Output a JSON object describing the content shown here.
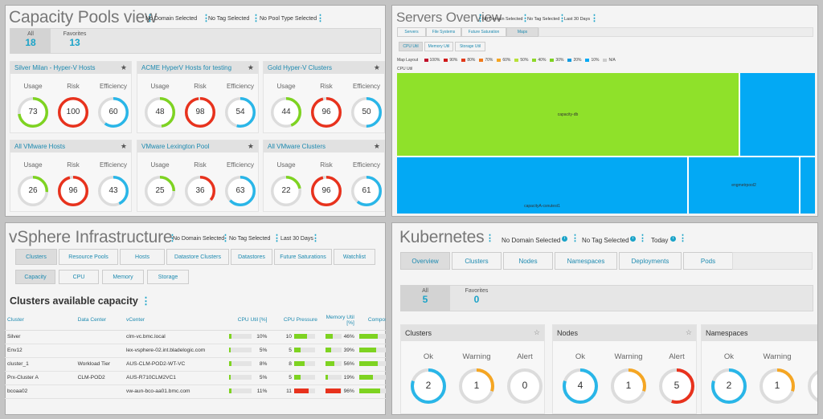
{
  "capacity": {
    "title": "Capacity Pools view",
    "filters": [
      "No Domain Selected",
      "No Tag Selected",
      "No Pool Type Selected"
    ],
    "tabs": [
      {
        "label": "All",
        "count": "18"
      },
      {
        "label": "Favorites",
        "count": "13"
      }
    ],
    "metric_labels": [
      "Usage",
      "Risk",
      "Efficiency"
    ],
    "pools": [
      {
        "name": "Silver Milan - Hyper-V Hosts",
        "values": [
          73,
          100,
          60
        ]
      },
      {
        "name": "ACME HyperV Hosts for testing",
        "values": [
          48,
          98,
          54
        ]
      },
      {
        "name": "Gold Hyper-V Clusters",
        "values": [
          44,
          96,
          50
        ]
      },
      {
        "name": "All VMware Hosts",
        "values": [
          26,
          96,
          43
        ]
      },
      {
        "name": "VMware Lexington Pool",
        "values": [
          25,
          36,
          63
        ]
      },
      {
        "name": "All VMware Clusters",
        "values": [
          22,
          96,
          61
        ]
      }
    ]
  },
  "servers": {
    "title": "Servers Overview",
    "filters": [
      "No Domain Selected",
      "No Tag Selected",
      "Last 30 Days"
    ],
    "tabs": [
      "Servers",
      "File Systems",
      "Future Saturation",
      "Maps"
    ],
    "subtabs": [
      "CPU Util",
      "Memory Util",
      "Storage Util"
    ],
    "legend_title": "Map Layout",
    "legend": [
      {
        "label": "100%",
        "color": "#c0102a"
      },
      {
        "label": "90%",
        "color": "#d01818"
      },
      {
        "label": "80%",
        "color": "#e23a1a"
      },
      {
        "label": "70%",
        "color": "#f07a1a"
      },
      {
        "label": "60%",
        "color": "#f5a623"
      },
      {
        "label": "50%",
        "color": "#b8e03a"
      },
      {
        "label": "40%",
        "color": "#8ed82a"
      },
      {
        "label": "30%",
        "color": "#7ed321"
      },
      {
        "label": "20%",
        "color": "#149be0"
      },
      {
        "label": "10%",
        "color": "#03a9f4"
      },
      {
        "label": "N/A",
        "color": "#cccccc"
      }
    ],
    "map_label": "CPU Util",
    "tiles": [
      "capacity-db",
      "capacityA-csnutest1",
      "engmetrpool2"
    ]
  },
  "vsphere": {
    "title": "vSphere Infrastructure",
    "filters": [
      "No Domain Selected",
      "No Tag Selected",
      "Last 30 Days"
    ],
    "tabs": [
      "Clusters",
      "Resource Pools",
      "Hosts",
      "Datastore Clusters",
      "Datastores",
      "Future Saturations",
      "Watchlist"
    ],
    "subtabs": [
      "Capacity",
      "CPU",
      "Memory",
      "Storage"
    ],
    "section_title": "Clusters available capacity",
    "columns": [
      "Cluster",
      "Data Center",
      "vCenter",
      "CPU Util [%]",
      "CPU Pressure",
      "Memory Util [%]",
      "Composite I"
    ],
    "rows": [
      {
        "cluster": "Silver",
        "dc": "",
        "vcenter": "clm-vc.bmc.local",
        "cpu": "10%",
        "cpu_f": 10,
        "press": "10",
        "press_f": 0.62,
        "mem": "46%",
        "mem_f": 46,
        "comp_f": 60
      },
      {
        "cluster": "Env12",
        "dc": "",
        "vcenter": "lex-vsphere-02.int.bladelogic.com",
        "cpu": "5%",
        "cpu_f": 5,
        "press": "5",
        "press_f": 0.32,
        "mem": "39%",
        "mem_f": 39,
        "comp_f": 55
      },
      {
        "cluster": "cluster_1",
        "dc": "Workload Tier",
        "vcenter": "AUS-CLM-POD2-WT-VC",
        "cpu": "8%",
        "cpu_f": 8,
        "press": "8",
        "press_f": 0.5,
        "mem": "56%",
        "mem_f": 56,
        "comp_f": 60
      },
      {
        "cluster": "Prx-Cluster A",
        "dc": "CLM-POD2",
        "vcenter": "AUS-R710CLM2VC1",
        "cpu": "5%",
        "cpu_f": 5,
        "press": "5",
        "press_f": 0.32,
        "mem": "19%",
        "mem_f": 19,
        "comp_f": 45
      },
      {
        "cluster": "bcoaa02",
        "dc": "",
        "vcenter": "vw-aun-bco-aa01.bmc.com",
        "cpu": "11%",
        "cpu_f": 11,
        "press": "11",
        "press_f": 0.68,
        "mem": "96%",
        "mem_f": 96,
        "comp_f": 70
      }
    ]
  },
  "kube": {
    "title": "Kubernetes",
    "filters": [
      "No Domain Selected",
      "No Tag Selected",
      "Today"
    ],
    "tabs": [
      "Overview",
      "Clusters",
      "Nodes",
      "Namespaces",
      "Deployments",
      "Pods"
    ],
    "counts": [
      {
        "label": "All",
        "count": "5"
      },
      {
        "label": "Favorites",
        "count": "0"
      }
    ],
    "status_labels": [
      "Ok",
      "Warning",
      "Alert"
    ],
    "cards": [
      {
        "name": "Clusters",
        "values": [
          2,
          1,
          0
        ]
      },
      {
        "name": "Nodes",
        "values": [
          4,
          1,
          5
        ]
      },
      {
        "name": "Namespaces",
        "values": [
          2,
          1,
          ""
        ]
      }
    ],
    "colors": {
      "ok": "#29b6e8",
      "warning": "#f5a623",
      "alert": "#e8321d",
      "track": "#dcdcdc"
    }
  }
}
